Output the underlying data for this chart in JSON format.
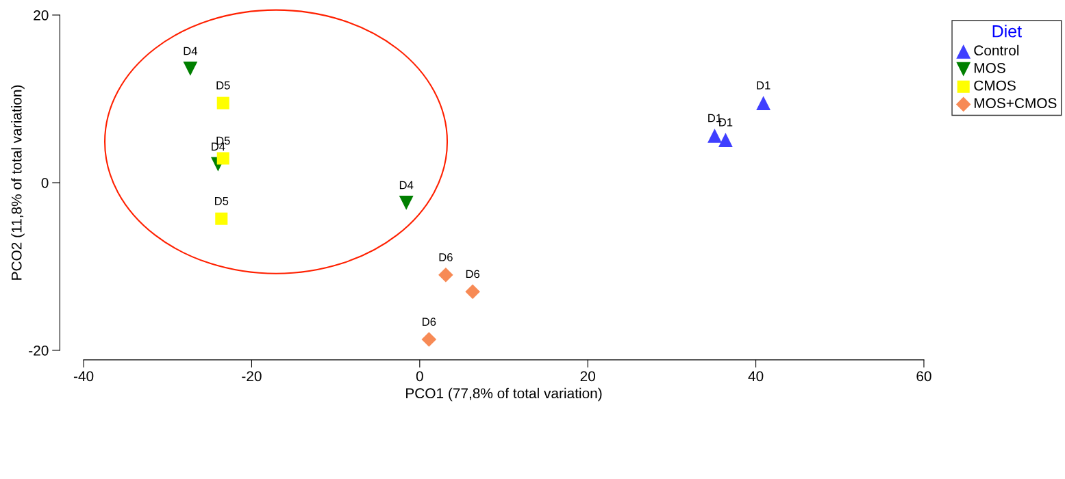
{
  "chart_data": {
    "type": "scatter",
    "xlabel": "PCO1 (77,8% of total variation)",
    "ylabel": "PCO2 (11,8% of total variation)",
    "legend_title": "Diet",
    "legend": "top right",
    "grid": false,
    "xlim": [
      -40,
      60
    ],
    "xticks": [
      -40,
      -20,
      0,
      20,
      40,
      60
    ],
    "ylim": [
      -20,
      20
    ],
    "yticks": [
      -20,
      0,
      20
    ],
    "series": [
      {
        "name": "Control",
        "color": "#3f3fff",
        "marker": "triangle",
        "x": [
          40.9,
          35.1,
          36.4
        ],
        "values": [
          9.5,
          5.6,
          5.1
        ]
      },
      {
        "name": "MOS",
        "color": "#007f00",
        "marker": "triangle-down",
        "x": [
          -27.3,
          -24.0,
          -1.6
        ],
        "values": [
          13.6,
          2.2,
          -2.4
        ]
      },
      {
        "name": "CMOS",
        "color": "#ffff00",
        "marker": "square",
        "x": [
          -23.4,
          -23.4,
          -23.6
        ],
        "values": [
          9.5,
          2.9,
          -4.3
        ]
      },
      {
        "name": "MOS+CMOS",
        "color": "#f78a55",
        "marker": "diamond",
        "x": [
          3.1,
          6.3,
          1.1
        ],
        "values": [
          -11.0,
          -13.0,
          -18.7
        ]
      }
    ],
    "annotations": [
      {
        "text": "D1",
        "x": 40.9,
        "y": 9.5
      },
      {
        "text": "D1",
        "x": 35.1,
        "y": 5.6
      },
      {
        "text": "D1",
        "x": 36.4,
        "y": 5.1
      },
      {
        "text": "D4",
        "x": -27.3,
        "y": 13.6
      },
      {
        "text": "D4",
        "x": -24.0,
        "y": 2.2
      },
      {
        "text": "D4",
        "x": -1.6,
        "y": -2.4
      },
      {
        "text": "D5",
        "x": -23.4,
        "y": 9.5
      },
      {
        "text": "D5",
        "x": -23.4,
        "y": 2.9
      },
      {
        "text": "D5",
        "x": -23.6,
        "y": -4.3
      },
      {
        "text": "D6",
        "x": 3.1,
        "y": -11.0
      },
      {
        "text": "D6",
        "x": 6.3,
        "y": -13.0
      },
      {
        "text": "D6",
        "x": 1.1,
        "y": -18.7
      }
    ]
  }
}
